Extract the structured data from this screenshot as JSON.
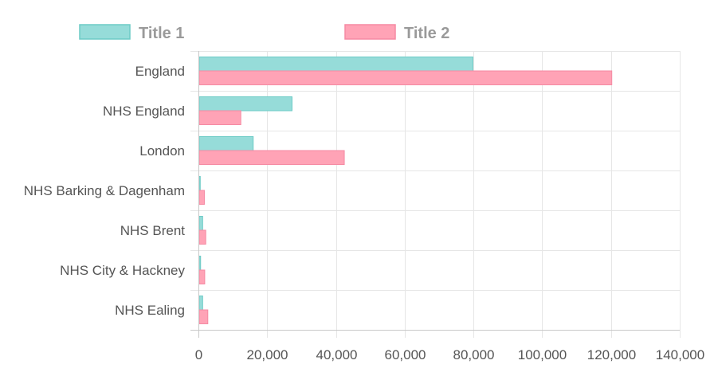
{
  "chart_data": {
    "type": "bar",
    "orientation": "horizontal",
    "categories": [
      "England",
      "NHS England",
      "London",
      "NHS Barking & Dagenham",
      "NHS Brent",
      "NHS City & Hackney",
      "NHS Ealing"
    ],
    "series": [
      {
        "name": "Title 1",
        "color": "#96dcd9",
        "border_color": "#6dcbc6",
        "values": [
          79600,
          27000,
          15700,
          300,
          1000,
          400,
          1000
        ]
      },
      {
        "name": "Title 2",
        "color": "#ffa3b6",
        "border_color": "#f58aa3",
        "values": [
          120000,
          12100,
          42200,
          1500,
          1900,
          1600,
          2500
        ]
      }
    ],
    "xlim": [
      0,
      140000
    ],
    "x_ticks": [
      "0",
      "20,000",
      "40,000",
      "60,000",
      "80,000",
      "100,000",
      "120,000",
      "140,000"
    ],
    "title": "",
    "xlabel": "",
    "ylabel": "",
    "grid": true,
    "legend_position": "top"
  }
}
